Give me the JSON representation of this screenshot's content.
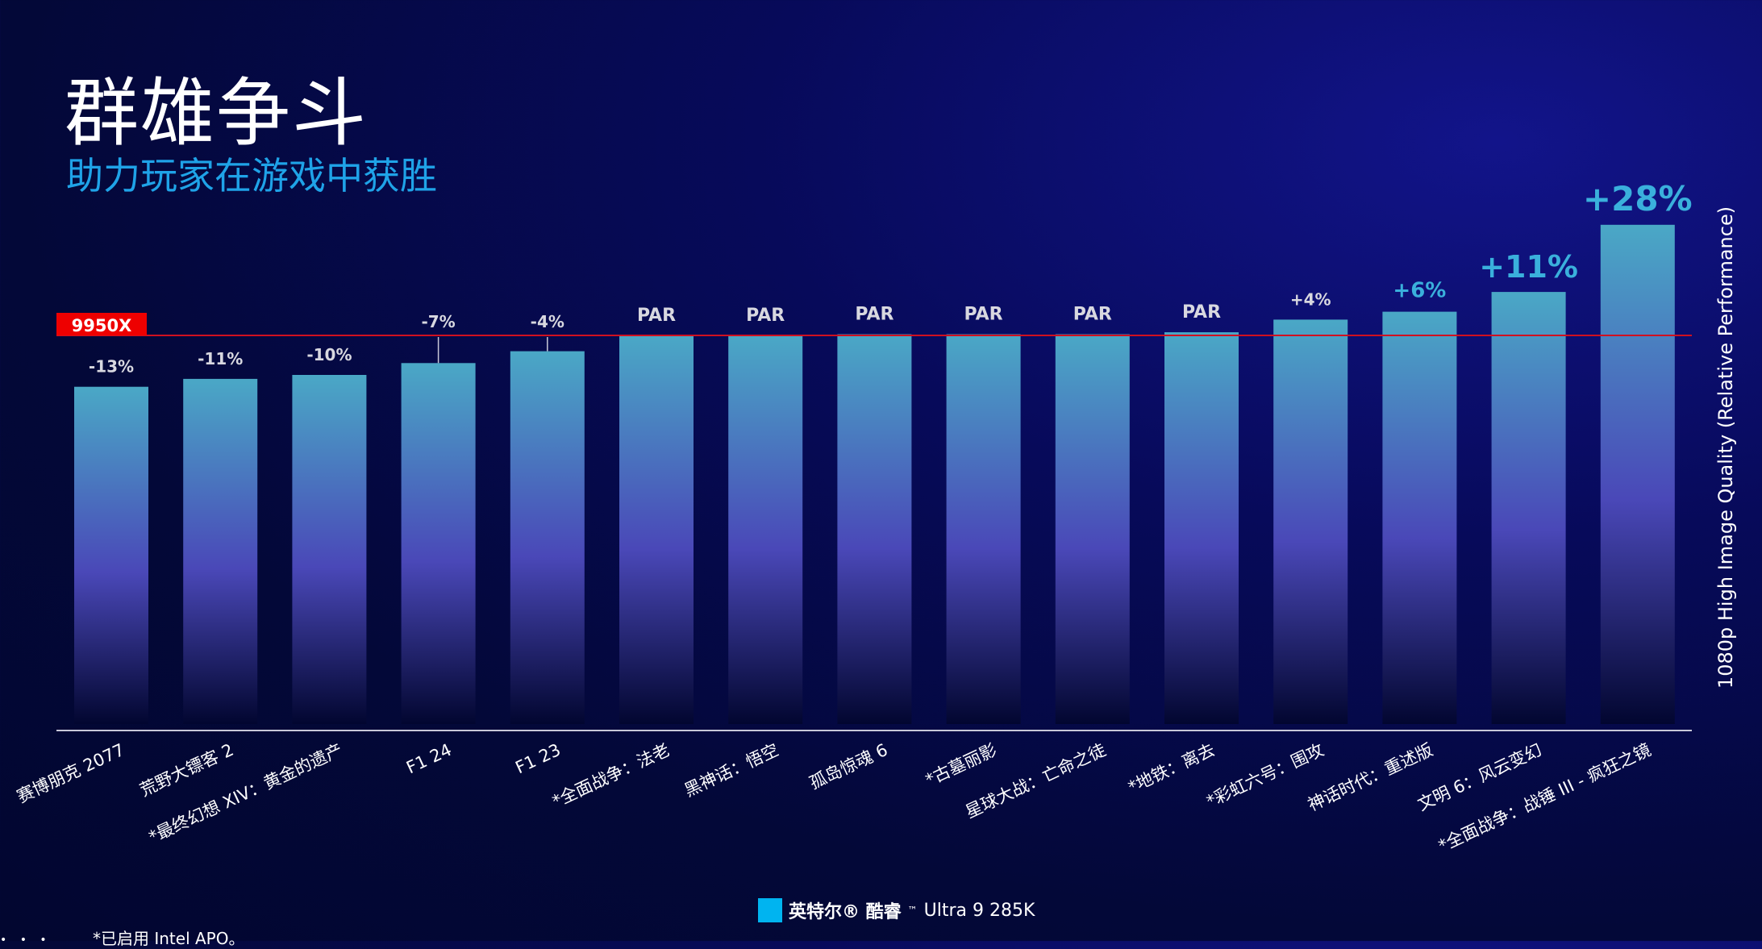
{
  "header": {
    "title": "群雄争斗",
    "subtitle": "助力玩家在游戏中获胜"
  },
  "legend": {
    "brand": "英特尔® 酷睿",
    "tm": "™",
    "model": "Ultra 9 285K",
    "color": "#00b4f0"
  },
  "footnote": "*已启用 Intel APO。",
  "chart_data": {
    "type": "bar",
    "title": "",
    "xlabel": "",
    "ylabel": "1080p High Image Quality (Relative Performance)",
    "baseline_label": "9950X",
    "baseline_value": 0,
    "baseline_color": "#ff0000",
    "categories": [
      "赛博朋克 2077",
      "荒野大镖客 2",
      "*最终幻想 XIV：黄金的遗产",
      "F1 24",
      "F1 23",
      "*全面战争：法老",
      "黑神话：悟空",
      "孤岛惊魂 6",
      "*古墓丽影",
      "星球大战：亡命之徒",
      "*地铁：离去",
      "*彩虹六号：围攻",
      "神话时代：重述版",
      "文明 6：风云变幻",
      "*全面战争：战锤 III - 疯狂之镜"
    ],
    "series": [
      {
        "name": "英特尔® 酷睿™ Ultra 9 285K",
        "values": [
          -13,
          -11,
          -10,
          -7,
          -4,
          0,
          0,
          0.3,
          0.3,
          0.3,
          0.8,
          4,
          6,
          11,
          28
        ],
        "labels": [
          "-13%",
          "-11%",
          "-10%",
          "-7%",
          "-4%",
          "PAR",
          "PAR",
          "PAR",
          "PAR",
          "PAR",
          "PAR",
          "+4%",
          "+6%",
          "+11%",
          "+28%"
        ]
      }
    ],
    "label_colors": {
      "negative": "#d8d8e0",
      "par": "#d8d8e0",
      "positive": "#3ab0dc"
    },
    "bar_gradient": [
      "#4aa8c6",
      "#4a48b8",
      "#020630"
    ]
  }
}
